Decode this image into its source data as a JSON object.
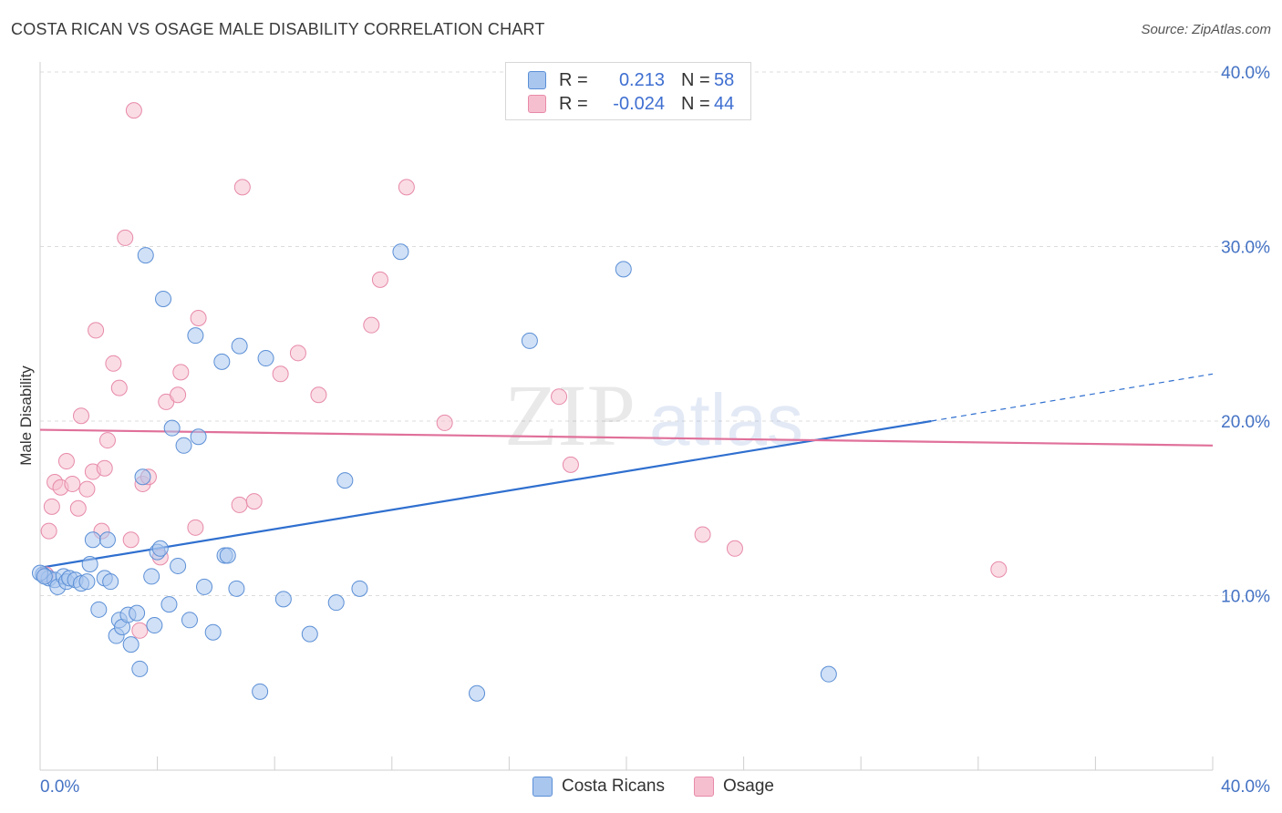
{
  "title": "COSTA RICAN VS OSAGE MALE DISABILITY CORRELATION CHART",
  "source": "Source: ZipAtlas.com",
  "watermark": {
    "zip": "ZIP",
    "atlas": "atlas"
  },
  "legend": {
    "rows": [
      {
        "r_label": "R =",
        "r_value": "0.213",
        "n_label": "N =",
        "n_value": "58"
      },
      {
        "r_label": "R =",
        "r_value": "-0.024",
        "n_label": "N =",
        "n_value": "44"
      }
    ]
  },
  "bottom_legend": [
    "Costa Ricans",
    "Osage"
  ],
  "colors": {
    "blue_fill": "#a9c6ef",
    "blue_stroke": "#5b8fd6",
    "blue_line": "#2f6fcf",
    "pink_fill": "#f6bfd0",
    "pink_stroke": "#e78aa8",
    "pink_line": "#e0709a",
    "grid": "#dcdcdc",
    "tick_text": "#4472c4"
  },
  "chart_data": {
    "type": "scatter",
    "title": "COSTA RICAN VS OSAGE MALE DISABILITY CORRELATION CHART",
    "xlabel": "",
    "ylabel": "Male Disability",
    "xlim": [
      0,
      40
    ],
    "ylim": [
      0,
      40
    ],
    "x_tick_labels": [
      "0.0%",
      "40.0%"
    ],
    "y_ticks": [
      10,
      20,
      30,
      40
    ],
    "y_tick_labels": [
      "10.0%",
      "20.0%",
      "30.0%",
      "40.0%"
    ],
    "grid": true,
    "legend_position": "top-center",
    "series": [
      {
        "name": "Costa Ricans",
        "r": 0.213,
        "n": 58,
        "trend": {
          "x0": 0,
          "y0": 11.6,
          "x1": 30.4,
          "y1": 20.0,
          "dash_to_x": 40,
          "dash_to_y": 22.7
        },
        "points": [
          [
            0.1,
            11.2
          ],
          [
            0.3,
            11.0
          ],
          [
            0.5,
            10.9
          ],
          [
            0.6,
            10.5
          ],
          [
            0.8,
            11.1
          ],
          [
            0.9,
            10.8
          ],
          [
            1.0,
            11.0
          ],
          [
            1.2,
            10.9
          ],
          [
            1.4,
            10.7
          ],
          [
            1.6,
            10.8
          ],
          [
            1.7,
            11.8
          ],
          [
            1.8,
            13.2
          ],
          [
            2.0,
            9.2
          ],
          [
            2.2,
            11.0
          ],
          [
            2.3,
            13.2
          ],
          [
            2.4,
            10.8
          ],
          [
            2.6,
            7.7
          ],
          [
            2.7,
            8.6
          ],
          [
            2.8,
            8.2
          ],
          [
            3.0,
            8.9
          ],
          [
            3.1,
            7.2
          ],
          [
            3.3,
            9.0
          ],
          [
            3.4,
            5.8
          ],
          [
            3.5,
            16.8
          ],
          [
            3.6,
            29.5
          ],
          [
            3.8,
            11.1
          ],
          [
            3.9,
            8.3
          ],
          [
            4.0,
            12.5
          ],
          [
            4.1,
            12.7
          ],
          [
            4.2,
            27.0
          ],
          [
            4.4,
            9.5
          ],
          [
            4.5,
            19.6
          ],
          [
            4.7,
            11.7
          ],
          [
            4.9,
            18.6
          ],
          [
            5.1,
            8.6
          ],
          [
            5.3,
            24.9
          ],
          [
            5.4,
            19.1
          ],
          [
            5.6,
            10.5
          ],
          [
            5.9,
            7.9
          ],
          [
            6.2,
            23.4
          ],
          [
            6.3,
            12.3
          ],
          [
            6.4,
            12.3
          ],
          [
            6.7,
            10.4
          ],
          [
            6.8,
            24.3
          ],
          [
            7.5,
            4.5
          ],
          [
            7.7,
            23.6
          ],
          [
            8.3,
            9.8
          ],
          [
            9.2,
            7.8
          ],
          [
            10.1,
            9.6
          ],
          [
            10.4,
            16.6
          ],
          [
            10.9,
            10.4
          ],
          [
            12.3,
            29.7
          ],
          [
            14.9,
            4.4
          ],
          [
            16.7,
            24.6
          ],
          [
            19.9,
            28.7
          ],
          [
            26.9,
            5.5
          ],
          [
            0.0,
            11.3
          ],
          [
            0.15,
            11.1
          ]
        ]
      },
      {
        "name": "Osage",
        "r": -0.024,
        "n": 44,
        "trend": {
          "x0": 0,
          "y0": 19.5,
          "x1": 40,
          "y1": 18.6
        },
        "points": [
          [
            0.2,
            11.2
          ],
          [
            0.3,
            13.7
          ],
          [
            0.4,
            15.1
          ],
          [
            0.5,
            16.5
          ],
          [
            0.7,
            16.2
          ],
          [
            0.9,
            17.7
          ],
          [
            1.1,
            16.4
          ],
          [
            1.3,
            15.0
          ],
          [
            1.4,
            20.3
          ],
          [
            1.6,
            16.1
          ],
          [
            1.8,
            17.1
          ],
          [
            1.9,
            25.2
          ],
          [
            2.1,
            13.7
          ],
          [
            2.2,
            17.3
          ],
          [
            2.3,
            18.9
          ],
          [
            2.5,
            23.3
          ],
          [
            2.7,
            21.9
          ],
          [
            2.9,
            30.5
          ],
          [
            3.1,
            13.2
          ],
          [
            3.2,
            37.8
          ],
          [
            3.4,
            8.0
          ],
          [
            3.5,
            16.4
          ],
          [
            3.7,
            16.8
          ],
          [
            4.1,
            12.2
          ],
          [
            4.3,
            21.1
          ],
          [
            4.7,
            21.5
          ],
          [
            4.8,
            22.8
          ],
          [
            5.3,
            13.9
          ],
          [
            5.4,
            25.9
          ],
          [
            6.8,
            15.2
          ],
          [
            6.9,
            33.4
          ],
          [
            7.3,
            15.4
          ],
          [
            8.2,
            22.7
          ],
          [
            8.8,
            23.9
          ],
          [
            9.5,
            21.5
          ],
          [
            11.3,
            25.5
          ],
          [
            11.6,
            28.1
          ],
          [
            12.5,
            33.4
          ],
          [
            13.8,
            19.9
          ],
          [
            17.7,
            21.4
          ],
          [
            18.1,
            17.5
          ],
          [
            22.6,
            13.5
          ],
          [
            23.7,
            12.7
          ],
          [
            32.7,
            11.5
          ]
        ]
      }
    ]
  }
}
